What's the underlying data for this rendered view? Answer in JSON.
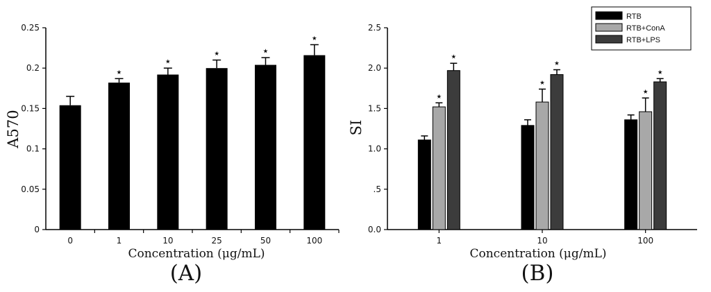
{
  "chart_data": [
    {
      "type": "bar",
      "panel_label": "(A)",
      "xlabel": "Concentration (μg/mL)",
      "ylabel": "A570",
      "categories": [
        "0",
        "1",
        "10",
        "25",
        "50",
        "100"
      ],
      "values": [
        0.154,
        0.182,
        0.192,
        0.2,
        0.204,
        0.216
      ],
      "errors": [
        0.011,
        0.005,
        0.008,
        0.01,
        0.009,
        0.013
      ],
      "significant": [
        false,
        true,
        true,
        true,
        true,
        true
      ],
      "significance_marker": "⋆",
      "ylim": [
        0,
        0.25
      ],
      "yticks": [
        "0",
        "0.05",
        "0.1",
        "0.15",
        "0.2",
        "0.25"
      ],
      "bar_color": "#000000",
      "grid": false,
      "legend": false
    },
    {
      "type": "bar",
      "panel_label": "(B)",
      "xlabel": "Concentration (μg/mL)",
      "ylabel": "SI",
      "categories": [
        "1",
        "10",
        "100"
      ],
      "series": [
        {
          "name": "RTB",
          "color": "#000000",
          "values": [
            1.11,
            1.29,
            1.36
          ],
          "errors": [
            0.05,
            0.07,
            0.06
          ],
          "significant": [
            false,
            false,
            false
          ]
        },
        {
          "name": "RTB+ConA",
          "color": "#a8a8a8",
          "values": [
            1.52,
            1.58,
            1.46
          ],
          "errors": [
            0.05,
            0.16,
            0.17
          ],
          "significant": [
            true,
            true,
            true
          ]
        },
        {
          "name": "RTB+LPS",
          "color": "#3c3c3c",
          "values": [
            1.97,
            1.92,
            1.83
          ],
          "errors": [
            0.09,
            0.06,
            0.04
          ],
          "significant": [
            true,
            true,
            true
          ]
        }
      ],
      "significance_marker": "⋆",
      "ylim": [
        0,
        2.5
      ],
      "yticks": [
        "0.0",
        ".5",
        "1.0",
        "1.5",
        "2.0",
        "2.5"
      ],
      "legend_position": "top-right",
      "grid": false
    }
  ]
}
